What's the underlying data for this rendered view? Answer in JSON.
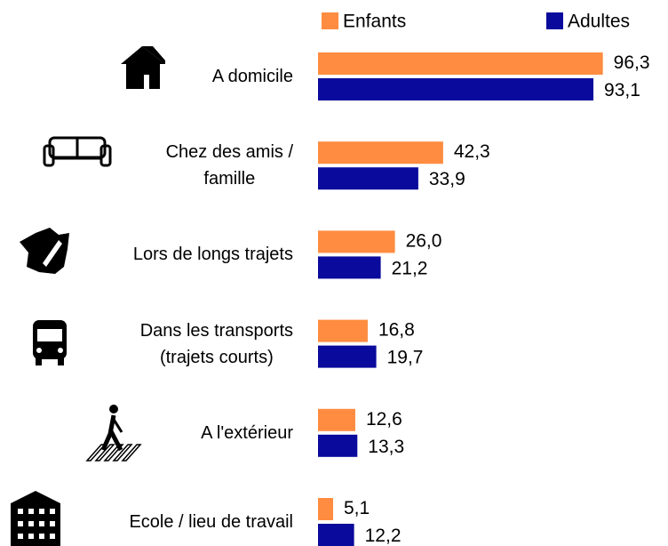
{
  "chart_data": {
    "type": "bar",
    "orientation": "horizontal",
    "categories": [
      "A domicile",
      "Chez des amis /\nfamille",
      "Lors de longs trajets",
      "Dans les transports\n(trajets courts)",
      "A l'extérieur",
      "Ecole / lieu de travail"
    ],
    "series": [
      {
        "name": "Enfants",
        "color": "#ff8c40",
        "values": [
          96.3,
          42.3,
          26.0,
          16.8,
          12.6,
          5.1
        ],
        "value_labels": [
          "96,3",
          "42,3",
          "26,0",
          "16,8",
          "12,6",
          "5,1"
        ]
      },
      {
        "name": "Adultes",
        "color": "#0a0a9c",
        "values": [
          93.1,
          33.9,
          21.2,
          19.7,
          13.3,
          12.2
        ],
        "value_labels": [
          "93,1",
          "33,9",
          "21,2",
          "19,7",
          "13,3",
          "12,2"
        ]
      }
    ],
    "xlim": [
      0,
      100
    ],
    "legend": "top"
  }
}
